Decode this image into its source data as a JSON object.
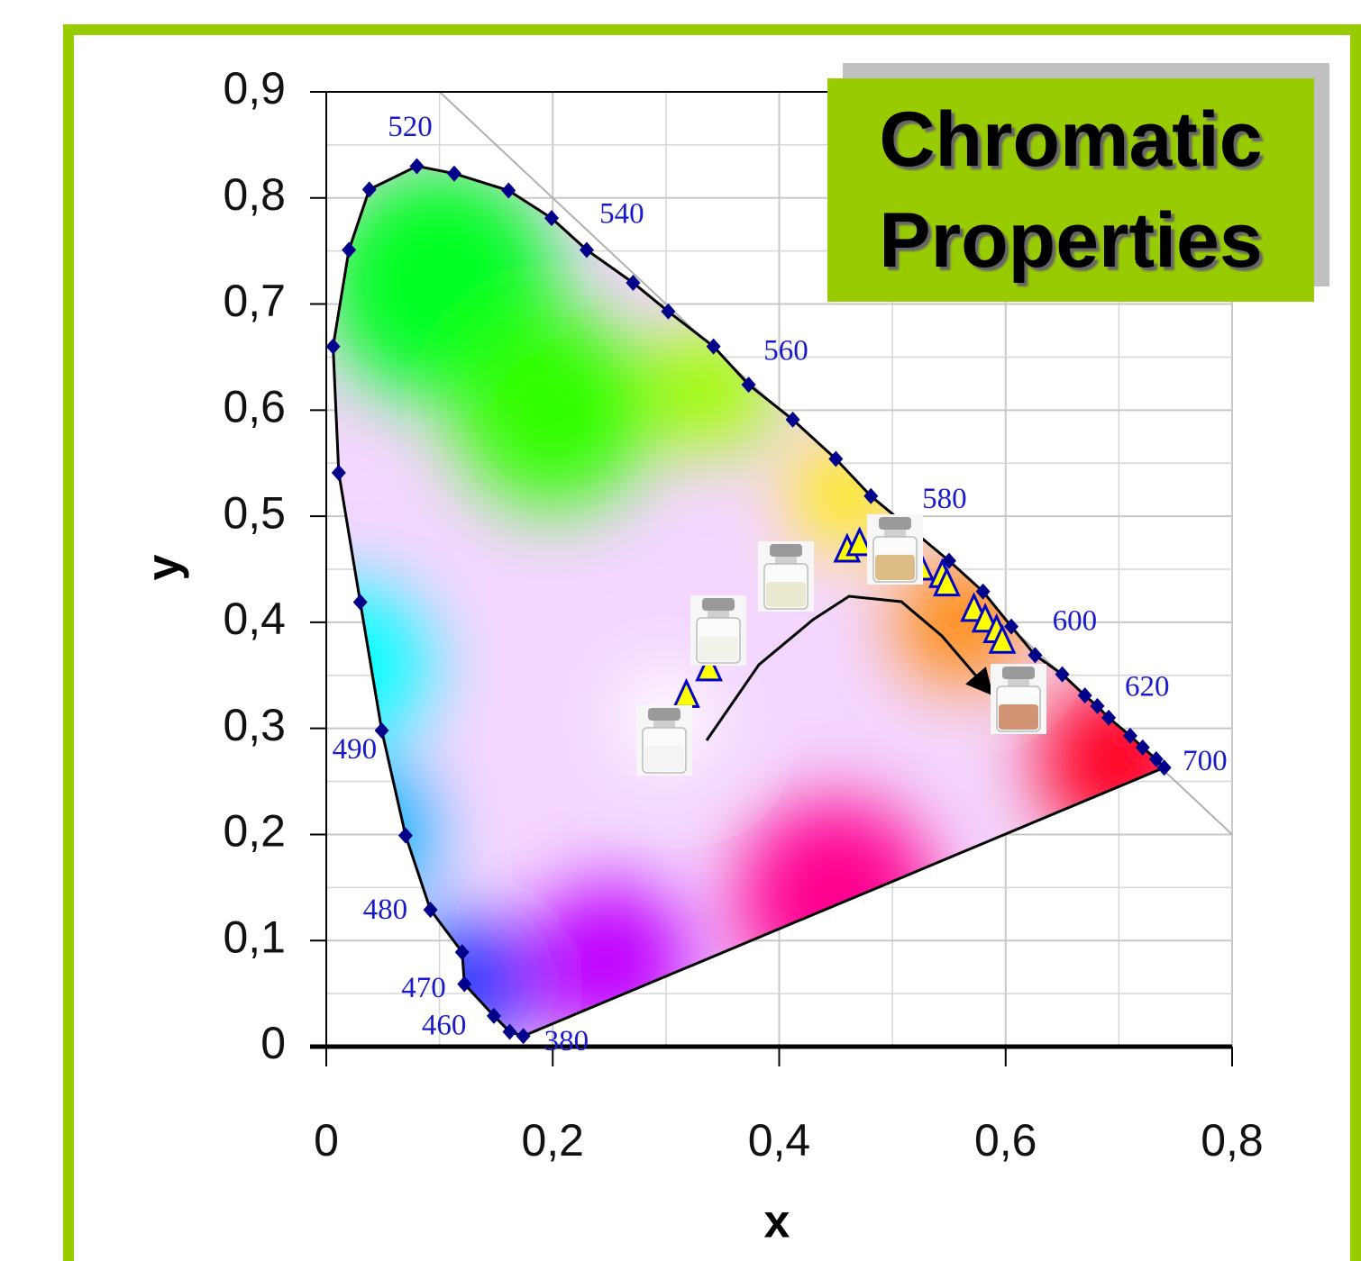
{
  "chart_data": {
    "type": "scatter",
    "title": "Chromatic Properties",
    "x_label": "x",
    "y_label": "y",
    "xlim": [
      0,
      0.8
    ],
    "ylim": [
      0,
      0.9
    ],
    "xticks": [
      0,
      {
        "value": 0.2,
        "label": "0,2"
      },
      {
        "value": 0.4,
        "label": "0,4"
      },
      {
        "value": 0.6,
        "label": "0,6"
      },
      {
        "value": 0.8,
        "label": "0,8"
      }
    ],
    "yticks": [
      0,
      {
        "value": 0.1,
        "label": "0,1"
      },
      {
        "value": 0.2,
        "label": "0,2"
      },
      {
        "value": 0.3,
        "label": "0,3"
      },
      {
        "value": 0.4,
        "label": "0,4"
      },
      {
        "value": 0.5,
        "label": "0,5"
      },
      {
        "value": 0.6,
        "label": "0,6"
      },
      {
        "value": 0.7,
        "label": "0,7"
      },
      {
        "value": 0.8,
        "label": "0,8"
      },
      {
        "value": 0.9,
        "label": "0,9"
      }
    ],
    "grid": true,
    "minor_grid": true,
    "series": [
      {
        "marker": "diamond",
        "color": "#00008b",
        "outline": "#000000",
        "x": [
          0.174,
          0.162,
          0.148,
          0.122,
          0.12,
          0.092,
          0.07,
          0.049,
          0.03,
          0.011,
          0.006,
          0.02,
          0.038,
          0.08,
          0.113,
          0.161,
          0.199,
          0.23,
          0.271,
          0.302,
          0.342,
          0.373,
          0.412,
          0.45,
          0.481,
          0.55,
          0.58,
          0.605,
          0.626,
          0.65,
          0.67,
          0.681,
          0.691,
          0.71,
          0.721,
          0.733,
          0.74
        ],
        "values": [
          0.01,
          0.014,
          0.029,
          0.059,
          0.089,
          0.129,
          0.199,
          0.298,
          0.419,
          0.541,
          0.66,
          0.751,
          0.808,
          0.83,
          0.823,
          0.807,
          0.781,
          0.751,
          0.72,
          0.693,
          0.66,
          0.624,
          0.591,
          0.554,
          0.519,
          0.458,
          0.429,
          0.396,
          0.369,
          0.351,
          0.331,
          0.321,
          0.31,
          0.293,
          0.282,
          0.271,
          0.263
        ]
      },
      {
        "marker": "triangle",
        "color": "#ffff00",
        "edge": "#0000cc",
        "x": [
          0.318,
          0.338,
          0.46,
          0.471,
          0.525,
          0.544,
          0.548,
          0.572,
          0.582,
          0.592,
          0.597
        ],
        "values": [
          0.33,
          0.355,
          0.467,
          0.473,
          0.45,
          0.443,
          0.435,
          0.411,
          0.401,
          0.391,
          0.381
        ]
      }
    ],
    "wavelength_labels": [
      {
        "text": "520",
        "x": 0.074,
        "y": 0.865
      },
      {
        "text": "540",
        "x": 0.261,
        "y": 0.783
      },
      {
        "text": "560",
        "x": 0.406,
        "y": 0.654
      },
      {
        "text": "580",
        "x": 0.546,
        "y": 0.514
      },
      {
        "text": "600",
        "x": 0.661,
        "y": 0.399
      },
      {
        "text": "620",
        "x": 0.725,
        "y": 0.337
      },
      {
        "text": "700",
        "x": 0.776,
        "y": 0.267
      },
      {
        "text": "490",
        "x": 0.025,
        "y": 0.278
      },
      {
        "text": "480",
        "x": 0.052,
        "y": 0.127
      },
      {
        "text": "470",
        "x": 0.086,
        "y": 0.053
      },
      {
        "text": "460",
        "x": 0.104,
        "y": 0.018
      },
      {
        "text": "380",
        "x": 0.212,
        "y": 0.003
      }
    ]
  }
}
